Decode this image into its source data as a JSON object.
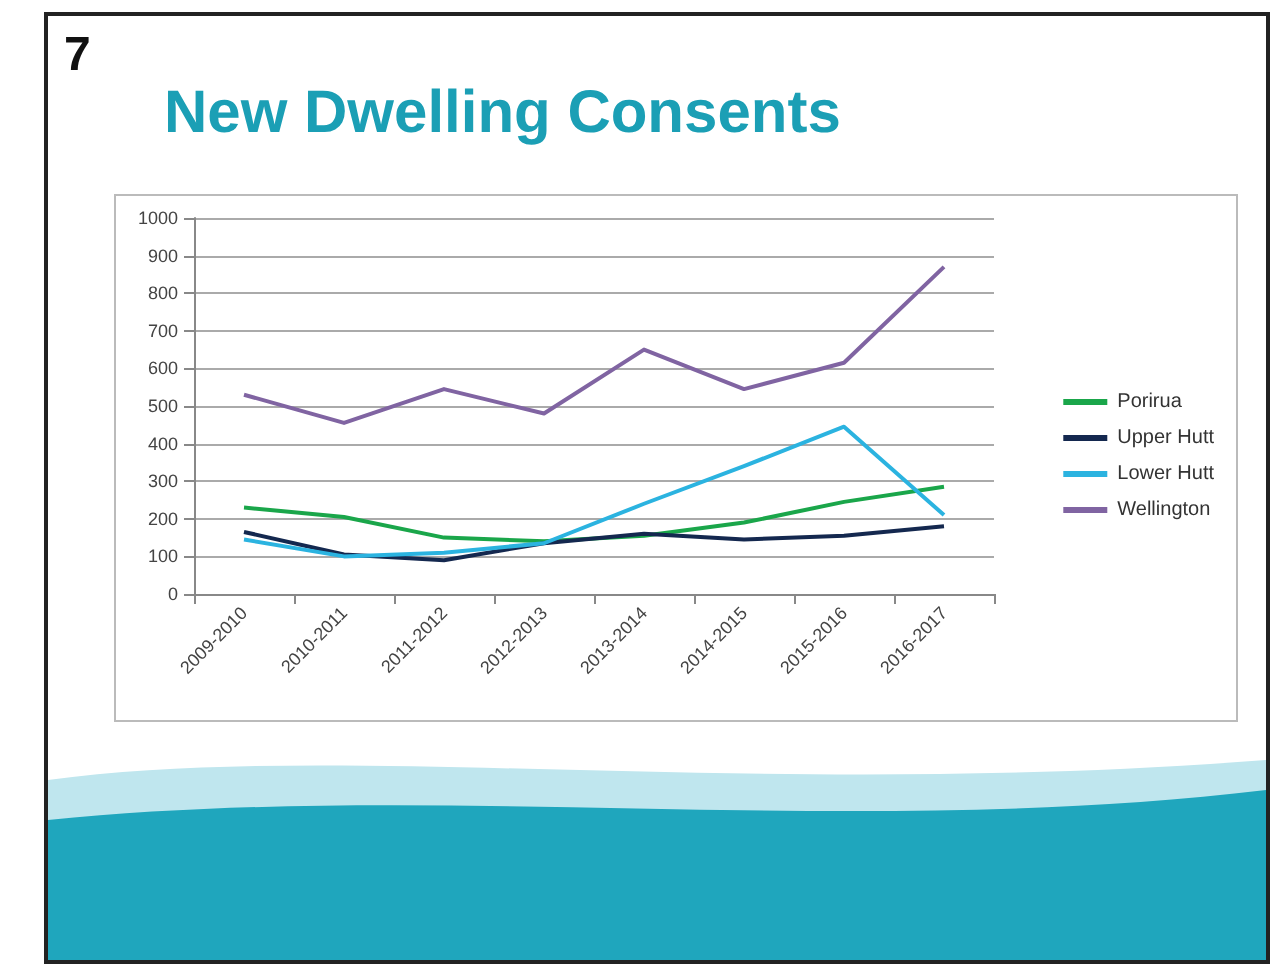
{
  "chart_data": {
    "type": "line",
    "title": "New Dwelling Consents",
    "annotations": [
      "7"
    ],
    "categories": [
      "2009-2010",
      "2010-2011",
      "2011-2012",
      "2012-2013",
      "2013-2014",
      "2014-2015",
      "2015-2016",
      "2016-2017"
    ],
    "series": [
      {
        "name": "Porirua",
        "color": "#1aa64a",
        "values": [
          230,
          205,
          150,
          140,
          155,
          190,
          245,
          285
        ]
      },
      {
        "name": "Upper Hutt",
        "color": "#14284f",
        "values": [
          165,
          105,
          90,
          135,
          160,
          145,
          155,
          180
        ]
      },
      {
        "name": "Lower Hutt",
        "color": "#2bb3e0",
        "values": [
          145,
          100,
          110,
          135,
          240,
          340,
          445,
          210
        ]
      },
      {
        "name": "Wellington",
        "color": "#8064a2",
        "values": [
          530,
          455,
          545,
          480,
          650,
          545,
          615,
          870
        ]
      }
    ],
    "ylim": [
      0,
      1000
    ],
    "yticks": [
      0,
      100,
      200,
      300,
      400,
      500,
      600,
      700,
      800,
      900,
      1000
    ],
    "grid": "y",
    "legend": "right",
    "marker": "none",
    "line_style": "solid"
  }
}
